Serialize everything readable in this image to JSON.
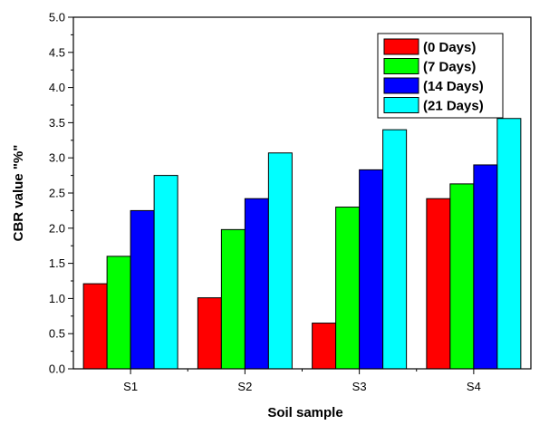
{
  "chart_data": {
    "type": "bar",
    "title": "",
    "xlabel": "Soil sample",
    "ylabel": "CBR value \"%\"",
    "categories": [
      "S1",
      "S2",
      "S3",
      "S4"
    ],
    "ylim": [
      0,
      5.0
    ],
    "yticks": [
      "0.0",
      "0.5",
      "1.0",
      "1.5",
      "2.0",
      "2.5",
      "3.0",
      "3.5",
      "4.0",
      "4.5",
      "5.0"
    ],
    "grid": false,
    "legend_position": "top-right",
    "series": [
      {
        "name": "(0 Days)",
        "color": "#ff0000",
        "values": [
          1.21,
          1.01,
          0.65,
          2.42
        ]
      },
      {
        "name": "(7 Days)",
        "color": "#00ff00",
        "values": [
          1.6,
          1.98,
          2.3,
          2.63
        ]
      },
      {
        "name": "(14 Days)",
        "color": "#0000ff",
        "values": [
          2.25,
          2.42,
          2.83,
          2.9
        ]
      },
      {
        "name": "(21 Days)",
        "color": "#00ffff",
        "values": [
          2.75,
          3.07,
          3.4,
          3.56
        ]
      }
    ]
  }
}
